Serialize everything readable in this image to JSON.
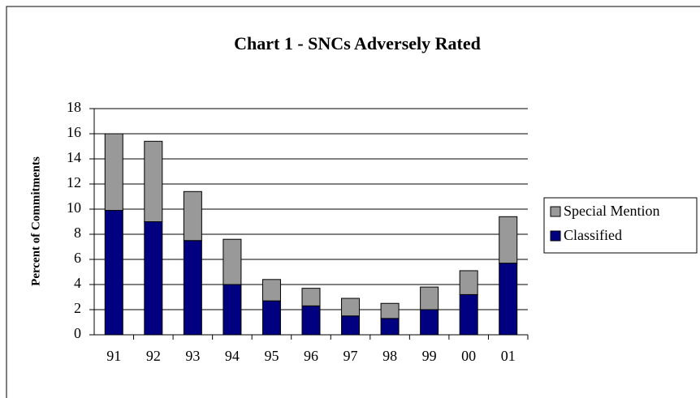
{
  "chart_data": {
    "type": "stacked_bar",
    "title": "Chart 1 - SNCs Adversely Rated",
    "y_label": "Percent of Commitments",
    "categories": [
      "91",
      "92",
      "93",
      "94",
      "95",
      "96",
      "97",
      "98",
      "99",
      "00",
      "01"
    ],
    "series": [
      {
        "name": "Classified",
        "color": "#000080",
        "values": [
          9.9,
          9.0,
          7.5,
          4.0,
          2.7,
          2.3,
          1.5,
          1.3,
          2.0,
          3.2,
          5.7
        ]
      },
      {
        "name": "Special Mention",
        "color": "#999999",
        "values": [
          6.1,
          6.4,
          3.9,
          3.6,
          1.7,
          1.4,
          1.4,
          1.2,
          1.8,
          1.9,
          3.7
        ]
      }
    ],
    "ylim": [
      0,
      18
    ],
    "yticks": [
      0,
      2,
      4,
      6,
      8,
      10,
      12,
      14,
      16,
      18
    ],
    "grid": true,
    "legend": "right"
  }
}
